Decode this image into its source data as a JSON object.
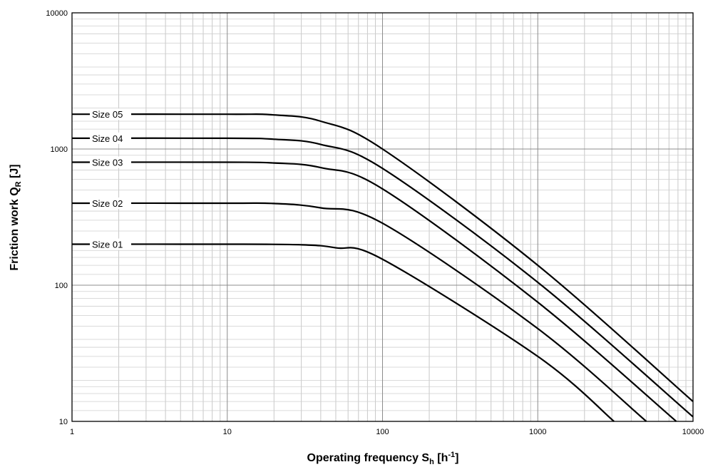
{
  "chart_data": {
    "type": "line",
    "x_scale": "log",
    "y_scale": "log",
    "xlim": [
      1,
      10000
    ],
    "ylim": [
      10,
      10000
    ],
    "x_ticks": [
      "1",
      "10",
      "100",
      "1000",
      "10000"
    ],
    "y_ticks": [
      "10",
      "100",
      "1000",
      "10000"
    ],
    "xlabel": {
      "main": "Operating frequency S",
      "sub": "h",
      "unit_open": " [h",
      "sup": "-1",
      "unit_close": "]"
    },
    "ylabel": {
      "main": "Friction work Q",
      "sub": "R",
      "unit": " [J]"
    },
    "grid": true,
    "series": [
      {
        "name": "Size 05",
        "values": [
          [
            1,
            1800
          ],
          [
            10,
            1800
          ],
          [
            20,
            1780
          ],
          [
            40,
            1600
          ],
          [
            100,
            1000
          ],
          [
            1000,
            140
          ],
          [
            10000,
            14
          ]
        ]
      },
      {
        "name": "Size 04",
        "values": [
          [
            1,
            1200
          ],
          [
            10,
            1200
          ],
          [
            20,
            1180
          ],
          [
            40,
            1080
          ],
          [
            100,
            720
          ],
          [
            1000,
            105
          ],
          [
            10000,
            10.8
          ]
        ]
      },
      {
        "name": "Size 03",
        "values": [
          [
            1,
            800
          ],
          [
            10,
            800
          ],
          [
            20,
            790
          ],
          [
            40,
            730
          ],
          [
            100,
            510
          ],
          [
            1000,
            75
          ],
          [
            7800,
            10
          ]
        ]
      },
      {
        "name": "Size 02",
        "values": [
          [
            1,
            400
          ],
          [
            10,
            400
          ],
          [
            20,
            398
          ],
          [
            40,
            370
          ],
          [
            100,
            285
          ],
          [
            1000,
            48
          ],
          [
            5000,
            10
          ]
        ]
      },
      {
        "name": "Size 01",
        "values": [
          [
            1,
            200
          ],
          [
            10,
            200
          ],
          [
            30,
            198
          ],
          [
            50,
            188
          ],
          [
            100,
            155
          ],
          [
            1000,
            30
          ],
          [
            3100,
            10
          ]
        ]
      }
    ]
  }
}
